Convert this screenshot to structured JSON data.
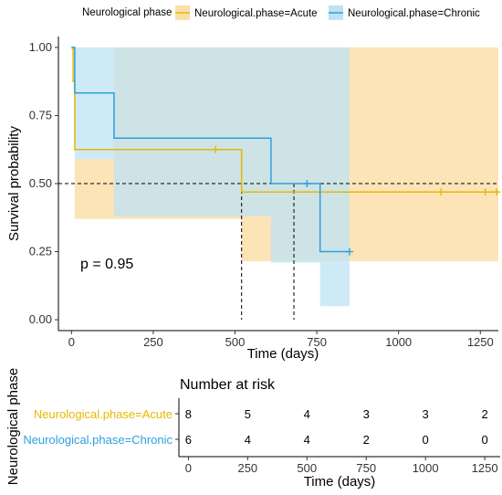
{
  "legend": {
    "title": "Neurological phase",
    "entries": [
      {
        "label": "Neurological.phase=Acute",
        "color": "#E7B800"
      },
      {
        "label": "Neurological.phase=Chronic",
        "color": "#2E9FDF"
      }
    ]
  },
  "chart_data": {
    "type": "line",
    "subtype": "kaplan-meier survival curve",
    "xlabel": "Time (days)",
    "ylabel": "Survival probability",
    "xlim": [
      -40,
      1305
    ],
    "ylim": [
      -0.04,
      1.04
    ],
    "x_ticks": [
      0,
      250,
      500,
      750,
      1000,
      1250
    ],
    "y_ticks": [
      0.0,
      0.25,
      0.5,
      0.75,
      1.0
    ],
    "y_tick_labels": [
      "0.00",
      "0.25",
      "0.50",
      "0.75",
      "1.00"
    ],
    "grid": false,
    "p_value_text": "p = 0.95",
    "median_line": {
      "y": 0.5,
      "x_medians": [
        520,
        680
      ]
    },
    "series": [
      {
        "name": "Neurological.phase=Acute",
        "color": "#E7B800",
        "band_color": "#FBDFAA",
        "steps": [
          [
            0,
            1.0
          ],
          [
            5,
            0.875
          ],
          [
            10,
            0.625
          ],
          [
            520,
            0.469
          ],
          [
            1305,
            0.469
          ]
        ],
        "ci_band": [
          [
            0,
            0.99,
            1.0
          ],
          [
            10,
            0.37,
            0.59
          ],
          [
            130,
            0.37,
            1.0
          ],
          [
            520,
            0.215,
            1.0
          ],
          [
            1305,
            0.215,
            1.0
          ]
        ],
        "censor_points": [
          [
            440,
            0.625
          ],
          [
            1130,
            0.469
          ],
          [
            1265,
            0.469
          ],
          [
            1300,
            0.469
          ]
        ]
      },
      {
        "name": "Neurological.phase=Chronic",
        "color": "#2E9FDF",
        "band_color": "#BDE3F4",
        "steps": [
          [
            0,
            1.0
          ],
          [
            10,
            0.833
          ],
          [
            130,
            0.667
          ],
          [
            610,
            0.5
          ],
          [
            760,
            0.25
          ],
          [
            850,
            0.25
          ]
        ],
        "ci_band": [
          [
            0,
            0.99,
            1.0
          ],
          [
            10,
            0.59,
            1.0
          ],
          [
            130,
            0.38,
            1.0
          ],
          [
            610,
            0.21,
            1.0
          ],
          [
            760,
            0.05,
            1.0
          ],
          [
            850,
            0.05,
            1.0
          ]
        ],
        "censor_points": [
          [
            720,
            0.5
          ],
          [
            850,
            0.25
          ]
        ]
      }
    ]
  },
  "risk_table": {
    "title": "Number at risk",
    "side_label": "Neurological phase",
    "xlabel": "Time (days)",
    "time_ticks": [
      0,
      250,
      500,
      750,
      1000,
      1250
    ],
    "rows": [
      {
        "label": "Neurological.phase=Acute",
        "color": "#E7B800",
        "counts": [
          8,
          5,
          4,
          3,
          3,
          2
        ]
      },
      {
        "label": "Neurological.phase=Chronic",
        "color": "#2E9FDF",
        "counts": [
          6,
          4,
          4,
          2,
          0,
          0
        ]
      }
    ]
  }
}
